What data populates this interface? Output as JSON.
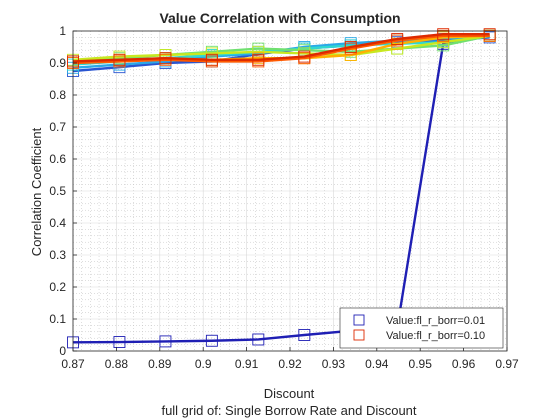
{
  "chart_data": {
    "type": "line",
    "title": "Value Correlation with Consumption",
    "xlabel": "Discount",
    "ylabel": "Correlation Coefficient",
    "caption": "full grid of: Single Borrow Rate and Discount",
    "xlim": [
      0.87,
      0.97
    ],
    "ylim": [
      0,
      1
    ],
    "xticks": [
      "0.87",
      "0.88",
      "0.89",
      "0.9",
      "0.91",
      "0.92",
      "0.93",
      "0.94",
      "0.95",
      "0.96",
      "0.97"
    ],
    "yticks": [
      "0",
      "0.1",
      "0.2",
      "0.3",
      "0.4",
      "0.5",
      "0.6",
      "0.7",
      "0.8",
      "0.9",
      "1"
    ],
    "grid": "on",
    "minor_grid": "on",
    "legend_position": "bottom-right",
    "x": [
      0.87,
      0.8807,
      0.8913,
      0.902,
      0.9127,
      0.9233,
      0.934,
      0.9447,
      0.9553,
      0.966
    ],
    "series": [
      {
        "name": "Value:fl_r_borr=0.01",
        "color": "#1f1fb4",
        "legend": true,
        "values": [
          0.027,
          0.028,
          0.03,
          0.032,
          0.036,
          0.05,
          0.063,
          0.072,
          0.96,
          0.985
        ]
      },
      {
        "color": "#2a55d0",
        "legend": false,
        "values": [
          0.875,
          0.887,
          0.9,
          0.905,
          0.928,
          0.945,
          0.955,
          0.965,
          0.97,
          0.98
        ]
      },
      {
        "color": "#2aa8e8",
        "legend": false,
        "values": [
          0.885,
          0.895,
          0.905,
          0.92,
          0.93,
          0.95,
          0.962,
          0.97,
          0.975,
          0.985
        ]
      },
      {
        "color": "#30d8d0",
        "legend": false,
        "values": [
          0.895,
          0.905,
          0.915,
          0.925,
          0.935,
          0.945,
          0.955,
          0.96,
          0.965,
          0.985
        ]
      },
      {
        "color": "#70e070",
        "legend": false,
        "values": [
          0.905,
          0.915,
          0.925,
          0.935,
          0.945,
          0.94,
          0.935,
          0.945,
          0.955,
          0.985
        ]
      },
      {
        "color": "#c8e820",
        "legend": false,
        "values": [
          0.91,
          0.92,
          0.925,
          0.93,
          0.935,
          0.93,
          0.925,
          0.945,
          0.965,
          0.985
        ]
      },
      {
        "color": "#ffb000",
        "legend": false,
        "values": [
          0.905,
          0.91,
          0.915,
          0.91,
          0.915,
          0.915,
          0.925,
          0.96,
          0.98,
          0.985
        ]
      },
      {
        "color": "#ff5a00",
        "legend": false,
        "values": [
          0.9,
          0.905,
          0.91,
          0.905,
          0.905,
          0.915,
          0.945,
          0.97,
          0.985,
          0.985
        ]
      },
      {
        "name": "Value:fl_r_borr=0.10",
        "color": "#dd2a00",
        "legend": true,
        "values": [
          0.905,
          0.91,
          0.915,
          0.91,
          0.91,
          0.92,
          0.95,
          0.975,
          0.99,
          0.99
        ]
      }
    ]
  }
}
